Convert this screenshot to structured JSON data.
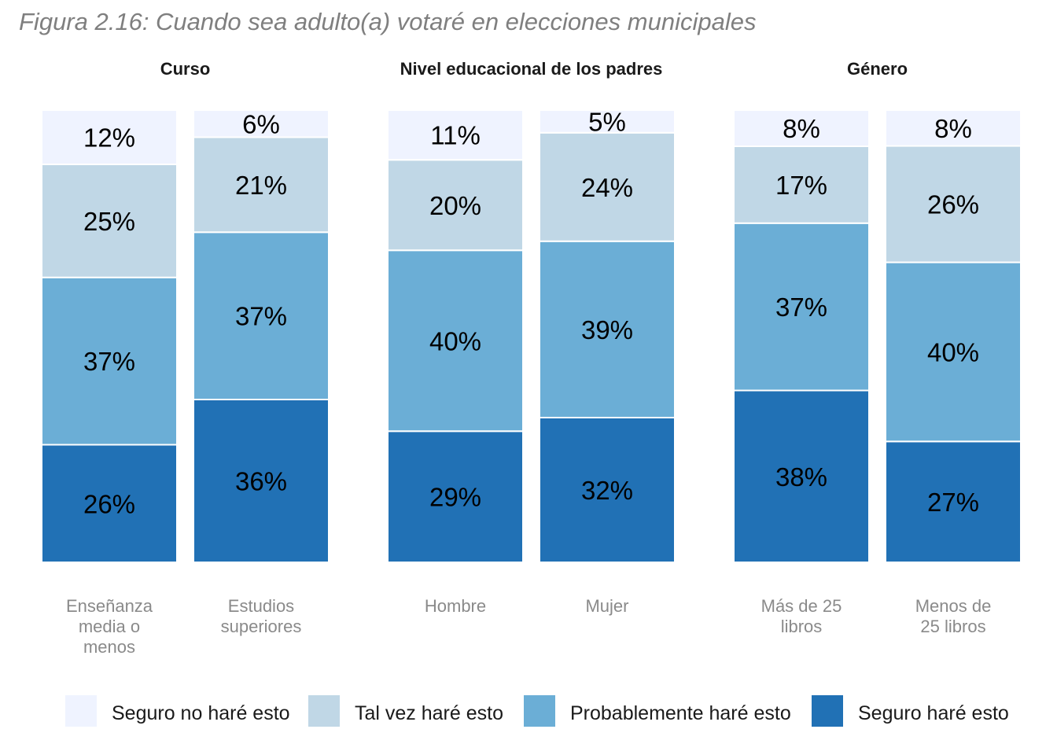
{
  "title": "Figura 2.16: Cuando sea adulto(a) votaré en elecciones municipales",
  "chart_data": {
    "type": "bar",
    "stacked": true,
    "unit": "%",
    "segments": [
      {
        "name": "Seguro haré esto",
        "color": "#2171b5"
      },
      {
        "name": "Probablemente haré esto",
        "color": "#6baed6"
      },
      {
        "name": "Tal vez haré esto",
        "color": "#c0d7e6"
      },
      {
        "name": "Seguro no haré esto",
        "color": "#eff3ff"
      }
    ],
    "facets": [
      {
        "title": "Curso",
        "bars": [
          {
            "label": [
              "Enseñanza",
              "media o",
              "menos"
            ],
            "values": [
              26,
              37,
              25,
              12
            ]
          },
          {
            "label": [
              "Estudios",
              "superiores"
            ],
            "values": [
              36,
              37,
              21,
              6
            ]
          }
        ]
      },
      {
        "title": "Nivel educacional de los padres",
        "bars": [
          {
            "label": [
              "Hombre"
            ],
            "values": [
              29,
              40,
              20,
              11
            ]
          },
          {
            "label": [
              "Mujer"
            ],
            "values": [
              32,
              39,
              24,
              5
            ]
          }
        ]
      },
      {
        "title": "Género",
        "bars": [
          {
            "label": [
              "Más de 25",
              "libros"
            ],
            "values": [
              38,
              37,
              17,
              8
            ]
          },
          {
            "label": [
              "Menos de",
              "25 libros"
            ],
            "values": [
              27,
              40,
              26,
              8
            ]
          }
        ]
      }
    ],
    "legend": {
      "position": "bottom",
      "order": [
        "Seguro no haré esto",
        "Tal vez haré esto",
        "Probablemente haré esto",
        "Seguro haré esto"
      ]
    },
    "grid": false
  }
}
